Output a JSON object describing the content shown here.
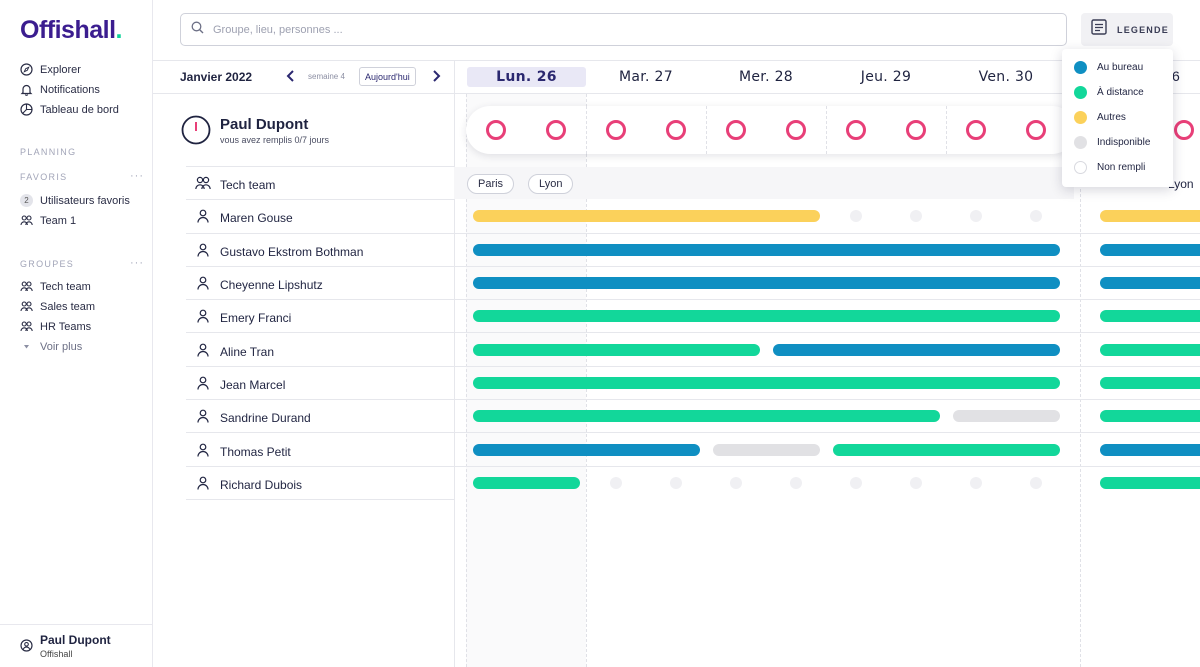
{
  "brand": {
    "name": "Offishall",
    "dot": "."
  },
  "nav": [
    {
      "label": "Explorer",
      "icon": "compass-icon"
    },
    {
      "label": "Notifications",
      "icon": "bell-icon"
    },
    {
      "label": "Tableau de bord",
      "icon": "dashboard-icon"
    }
  ],
  "sections": {
    "planning": "PLANNING",
    "favoris": "FAVORIS",
    "groupes": "GROUPES",
    "more": "···"
  },
  "favoris": [
    {
      "label": "Utilisateurs favoris",
      "badge": "2"
    },
    {
      "label": "Team 1"
    }
  ],
  "groupes": [
    {
      "label": "Tech team"
    },
    {
      "label": "Sales team"
    },
    {
      "label": "HR Teams"
    }
  ],
  "voir_plus": "Voir plus",
  "footer": {
    "name": "Paul Dupont",
    "org": "Offishall"
  },
  "search": {
    "placeholder": "Groupe, lieu, personnes ...",
    "value": ""
  },
  "legend_button": "LEGENDE",
  "legend": [
    {
      "label": "Au bureau",
      "color": "#0f8fc2"
    },
    {
      "label": "À distance",
      "color": "#12d79a"
    },
    {
      "label": "Autres",
      "color": "#fbd15b"
    },
    {
      "label": "Indisponible",
      "color": "#e1e1e4"
    },
    {
      "label": "Non rempli",
      "color": "#ffffff"
    }
  ],
  "calendar": {
    "month": "Janvier 2022",
    "week": "semaine 4",
    "today": "Aujourd'hui",
    "days": [
      "Lun. 26",
      "Mar. 27",
      "Mer. 28",
      "Jeu. 29",
      "Ven. 30"
    ],
    "next_day_partial": "6",
    "active_day": "Lun. 26"
  },
  "current_user": {
    "name": "Paul Dupont",
    "subtitle": "vous avez remplis 0/7 jours"
  },
  "team": {
    "name": "Tech team",
    "locations": [
      "Paris",
      "Lyon"
    ],
    "next_location_partial": "Lyon"
  },
  "members": [
    "Maren Gouse",
    "Gustavo Ekstrom Bothman",
    "Cheyenne Lipshutz",
    "Emery Franci",
    "Aline Tran",
    "Jean Marcel",
    "Sandrine Durand",
    "Thomas Petit",
    "Richard Dubois"
  ]
}
